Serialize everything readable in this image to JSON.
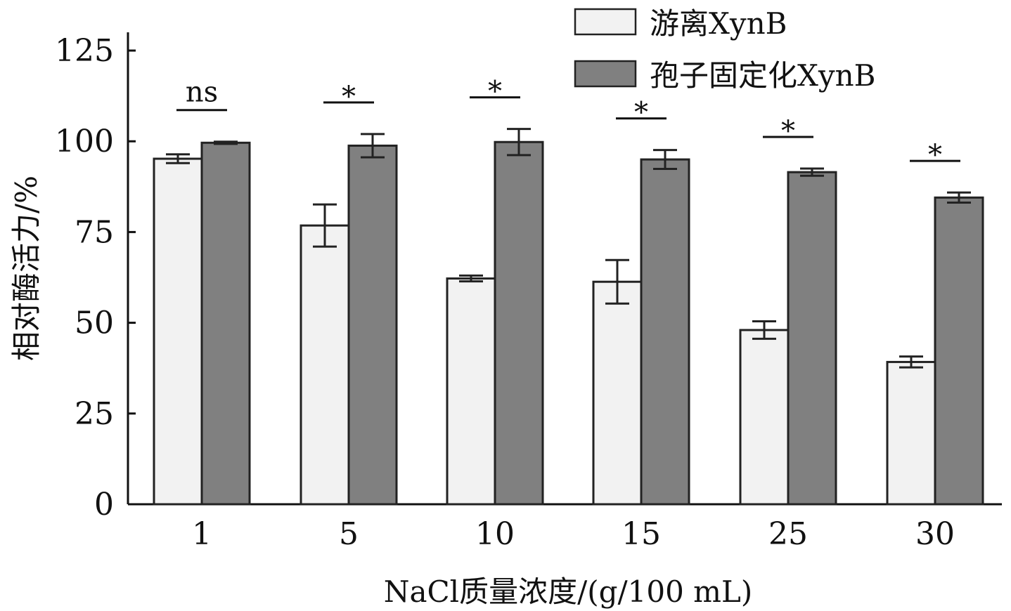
{
  "chart_data": {
    "type": "bar",
    "title": "",
    "xlabel": "NaCl质量浓度/(g/100 mL)",
    "ylabel": "相对酶活力/%",
    "categories": [
      "1",
      "5",
      "10",
      "15",
      "25",
      "30"
    ],
    "ylim": [
      0,
      125
    ],
    "yticks": [
      0,
      25,
      50,
      75,
      100,
      125
    ],
    "grid": false,
    "legend_position": "top-right",
    "series": [
      {
        "name": "游离XynB",
        "color": "#f2f2f2",
        "values": [
          95.2,
          76.8,
          62.2,
          61.3,
          48.0,
          39.2
        ],
        "errors": [
          1.2,
          5.8,
          0.8,
          6.0,
          2.4,
          1.5
        ]
      },
      {
        "name": "孢子固定化XynB",
        "color": "#808080",
        "values": [
          99.6,
          98.8,
          99.8,
          95.0,
          91.5,
          84.5
        ],
        "errors": [
          0.3,
          3.2,
          3.6,
          2.6,
          1.0,
          1.4
        ]
      }
    ],
    "significance": [
      "ns",
      "*",
      "*",
      "*",
      "*",
      "*"
    ]
  }
}
